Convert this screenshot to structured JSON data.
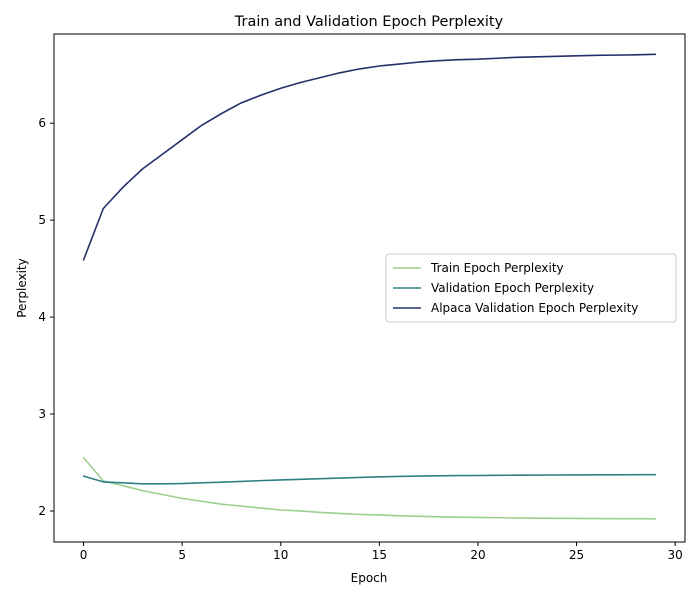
{
  "chart_data": {
    "type": "line",
    "title": "Train and Validation Epoch Perplexity",
    "xlabel": "Epoch",
    "ylabel": "Perplexity",
    "xlim": [
      -1.5,
      30.5
    ],
    "ylim": [
      1.68,
      6.92
    ],
    "xticks": [
      0,
      5,
      10,
      15,
      20,
      25,
      30
    ],
    "yticks": [
      2,
      3,
      4,
      5,
      6
    ],
    "grid": false,
    "legend_position": "center-right",
    "x": [
      0,
      1,
      2,
      3,
      4,
      5,
      6,
      7,
      8,
      9,
      10,
      11,
      12,
      13,
      14,
      15,
      16,
      17,
      18,
      19,
      20,
      21,
      22,
      23,
      24,
      25,
      26,
      27,
      28,
      29
    ],
    "series": [
      {
        "name": "Train Epoch Perplexity",
        "color": "#9dd08f",
        "values": [
          2.55,
          2.31,
          2.26,
          2.21,
          2.17,
          2.13,
          2.1,
          2.07,
          2.05,
          2.03,
          2.01,
          2.0,
          1.985,
          1.975,
          1.965,
          1.958,
          1.951,
          1.945,
          1.94,
          1.936,
          1.933,
          1.93,
          1.928,
          1.926,
          1.924,
          1.923,
          1.922,
          1.921,
          1.92,
          1.919
        ]
      },
      {
        "name": "Validation Epoch Perplexity",
        "color": "#2e8083",
        "values": [
          2.36,
          2.3,
          2.29,
          2.28,
          2.28,
          2.283,
          2.29,
          2.297,
          2.305,
          2.313,
          2.32,
          2.327,
          2.333,
          2.34,
          2.346,
          2.352,
          2.356,
          2.36,
          2.363,
          2.365,
          2.366,
          2.368,
          2.369,
          2.37,
          2.371,
          2.372,
          2.373,
          2.373,
          2.374,
          2.374
        ]
      },
      {
        "name": "Alpaca Validation Epoch Perplexity",
        "color": "#25306a",
        "values": [
          4.59,
          5.12,
          5.34,
          5.53,
          5.68,
          5.83,
          5.98,
          6.1,
          6.21,
          6.29,
          6.36,
          6.42,
          6.47,
          6.52,
          6.56,
          6.59,
          6.61,
          6.63,
          6.645,
          6.655,
          6.66,
          6.67,
          6.68,
          6.685,
          6.69,
          6.695,
          6.7,
          6.702,
          6.705,
          6.71
        ]
      }
    ]
  }
}
